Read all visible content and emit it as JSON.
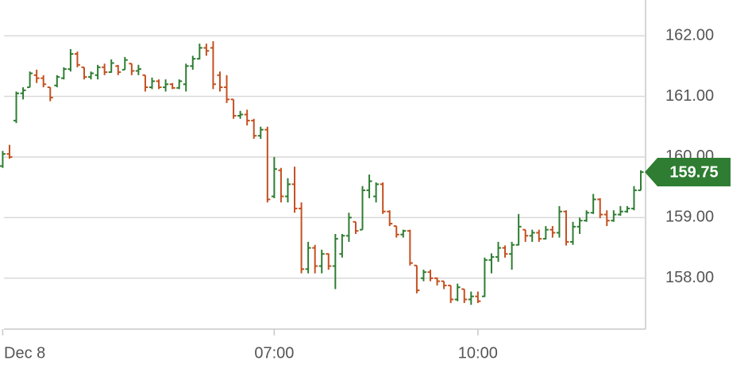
{
  "chart_data": {
    "type": "ohlc",
    "x": [
      3.0,
      3.1,
      3.2,
      3.3,
      3.4,
      3.5,
      3.6,
      3.7,
      3.8,
      3.9,
      4.0,
      4.1,
      4.2,
      4.3,
      4.4,
      4.5,
      4.6,
      4.7,
      4.8,
      4.9,
      5.0,
      5.1,
      5.2,
      5.3,
      5.4,
      5.5,
      5.6,
      5.7,
      5.8,
      5.9,
      6.0,
      6.1,
      6.2,
      6.3,
      6.4,
      6.5,
      6.6,
      6.7,
      6.8,
      6.9,
      7.0,
      7.1,
      7.2,
      7.3,
      7.4,
      7.5,
      7.6,
      7.7,
      7.8,
      7.9,
      8.0,
      8.1,
      8.2,
      8.3,
      8.4,
      8.5,
      8.6,
      8.7,
      8.8,
      8.9,
      9.0,
      9.1,
      9.2,
      9.3,
      9.4,
      9.5,
      9.6,
      9.7,
      9.8,
      9.9,
      10.0,
      10.1,
      10.2,
      10.3,
      10.4,
      10.5,
      10.6,
      10.7,
      10.8,
      10.9,
      11.0,
      11.1,
      11.2,
      11.3,
      11.4,
      11.5,
      11.6,
      11.7,
      11.8,
      11.9,
      12.0,
      12.1,
      12.2,
      12.3,
      12.4
    ],
    "open": [
      159.85,
      160.05,
      160.6,
      161.05,
      161.15,
      161.35,
      161.3,
      161.15,
      161.18,
      161.3,
      161.45,
      161.7,
      161.48,
      161.32,
      161.35,
      161.48,
      161.4,
      161.5,
      161.44,
      161.54,
      161.42,
      161.35,
      161.15,
      161.25,
      161.15,
      161.2,
      161.14,
      161.2,
      161.5,
      161.62,
      161.8,
      161.8,
      161.35,
      161.15,
      160.95,
      160.68,
      160.7,
      160.6,
      160.35,
      160.45,
      159.35,
      159.78,
      159.35,
      159.55,
      159.15,
      158.15,
      158.5,
      158.2,
      158.4,
      158.2,
      158.4,
      158.7,
      158.93,
      158.8,
      159.45,
      159.35,
      159.55,
      159.1,
      158.86,
      158.72,
      158.78,
      158.21,
      158.0,
      158.1,
      158.0,
      157.95,
      157.88,
      157.65,
      157.82,
      157.65,
      157.7,
      157.7,
      158.3,
      158.35,
      158.5,
      158.4,
      158.55,
      158.8,
      158.7,
      158.75,
      158.65,
      158.8,
      158.75,
      159.1,
      158.6,
      158.85,
      158.95,
      159.08,
      159.3,
      159.05,
      158.95,
      159.05,
      159.1,
      159.15,
      159.45
    ],
    "high": [
      160.1,
      160.2,
      161.08,
      161.15,
      161.41,
      161.44,
      161.35,
      161.15,
      161.35,
      161.48,
      161.78,
      161.74,
      161.48,
      161.41,
      161.52,
      161.54,
      161.61,
      161.52,
      161.65,
      161.54,
      161.52,
      161.35,
      161.31,
      161.28,
      161.28,
      161.22,
      161.28,
      161.54,
      161.67,
      161.87,
      161.87,
      161.91,
      161.41,
      161.35,
      160.95,
      160.76,
      160.78,
      160.63,
      160.5,
      160.5,
      160.0,
      159.82,
      159.65,
      159.84,
      159.25,
      158.6,
      158.55,
      158.47,
      158.41,
      158.73,
      158.73,
      159.08,
      158.93,
      159.52,
      159.71,
      159.58,
      159.58,
      159.12,
      158.86,
      158.8,
      158.8,
      158.21,
      158.14,
      158.14,
      158.01,
      157.95,
      157.88,
      157.91,
      157.82,
      157.78,
      157.78,
      158.34,
      158.41,
      158.6,
      158.54,
      158.6,
      159.06,
      158.8,
      158.8,
      158.8,
      158.86,
      158.86,
      159.19,
      159.12,
      158.93,
      159.0,
      159.12,
      159.39,
      159.32,
      159.12,
      159.12,
      159.19,
      159.19,
      159.52,
      159.78
    ],
    "low": [
      159.82,
      159.97,
      160.56,
      160.95,
      161.15,
      161.22,
      161.15,
      160.92,
      161.15,
      161.28,
      161.41,
      161.48,
      161.28,
      161.28,
      161.28,
      161.35,
      161.39,
      161.35,
      161.44,
      161.35,
      161.35,
      161.08,
      161.12,
      161.12,
      161.08,
      161.12,
      161.12,
      161.08,
      161.44,
      161.61,
      161.67,
      161.12,
      161.08,
      160.89,
      160.63,
      160.63,
      160.52,
      160.3,
      160.3,
      159.25,
      159.32,
      159.25,
      159.25,
      159.08,
      158.08,
      158.08,
      158.08,
      158.08,
      158.14,
      157.82,
      158.34,
      158.6,
      158.73,
      158.8,
      159.32,
      159.25,
      159.06,
      158.86,
      158.67,
      158.67,
      158.21,
      157.75,
      157.95,
      157.95,
      157.88,
      157.82,
      157.59,
      157.62,
      157.59,
      157.56,
      157.59,
      157.69,
      158.08,
      158.27,
      158.34,
      158.14,
      158.54,
      158.6,
      158.6,
      158.6,
      158.64,
      158.67,
      158.67,
      158.54,
      158.55,
      158.73,
      158.93,
      159.06,
      158.99,
      158.86,
      158.93,
      159.03,
      159.08,
      159.12,
      159.45
    ],
    "close": [
      160.05,
      160.0,
      161.05,
      161.1,
      161.38,
      161.3,
      161.2,
      160.98,
      161.32,
      161.45,
      161.7,
      161.52,
      161.32,
      161.38,
      161.48,
      161.4,
      161.55,
      161.4,
      161.6,
      161.42,
      161.45,
      161.15,
      161.25,
      161.15,
      161.2,
      161.14,
      161.25,
      161.5,
      161.62,
      161.8,
      161.75,
      161.2,
      161.15,
      160.95,
      160.68,
      160.7,
      160.6,
      160.35,
      160.45,
      159.3,
      159.8,
      159.35,
      159.55,
      159.15,
      158.15,
      158.5,
      158.2,
      158.4,
      158.2,
      158.65,
      158.7,
      159.0,
      158.78,
      159.45,
      159.6,
      159.55,
      159.1,
      158.9,
      158.72,
      158.78,
      158.25,
      157.8,
      158.1,
      158.0,
      157.95,
      157.88,
      157.65,
      157.85,
      157.65,
      157.7,
      157.62,
      158.3,
      158.35,
      158.5,
      158.4,
      158.55,
      158.85,
      158.7,
      158.75,
      158.65,
      158.8,
      158.75,
      159.1,
      158.6,
      158.85,
      158.95,
      159.08,
      159.3,
      159.05,
      158.95,
      159.05,
      159.1,
      159.15,
      159.45,
      159.75
    ],
    "up_color": "#2e7d32",
    "down_color": "#c4501f",
    "xlim": [
      2.96,
      12.47
    ],
    "ylim": [
      157.16,
      162.59
    ],
    "xticks": [
      {
        "value": 3,
        "label": "Dec 8"
      },
      {
        "value": 7,
        "label": "07:00"
      },
      {
        "value": 10,
        "label": "10:00"
      }
    ],
    "yticks": [
      {
        "value": 158,
        "label": "158.00"
      },
      {
        "value": 159,
        "label": "159.00"
      },
      {
        "value": 160,
        "label": "160.00"
      },
      {
        "value": 161,
        "label": "161.00"
      },
      {
        "value": 162,
        "label": "162.00"
      }
    ],
    "grid": true
  }
}
